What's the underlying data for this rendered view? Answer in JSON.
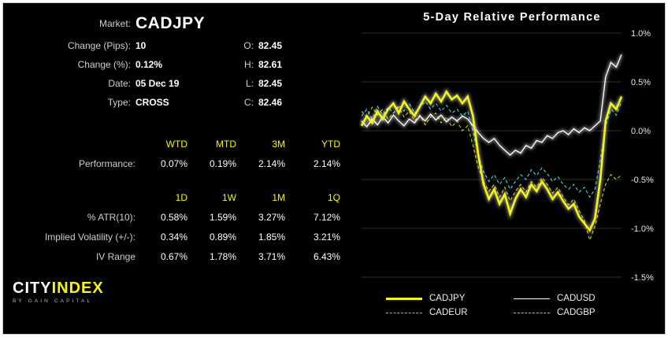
{
  "colors": {
    "accent": "#f8f800",
    "background": "#000000",
    "label_gray": "#cfcfcf",
    "value_white": "#ffffff",
    "grid": "#2e2e2e"
  },
  "info": {
    "market_label": "Market:",
    "market_value": "CADJPY",
    "rows": [
      {
        "label": "Change (Pips):",
        "value": "10",
        "label2": "O:",
        "value2": "82.45"
      },
      {
        "label": "Change (%):",
        "value": "0.12%",
        "label2": "H:",
        "value2": "82.61"
      },
      {
        "label": "Date:",
        "value": "05 Dec 19",
        "label2": "L:",
        "value2": "82.45"
      },
      {
        "label": "Type:",
        "value": "CROSS",
        "label2": "C:",
        "value2": "82.46"
      }
    ]
  },
  "performance": {
    "headers": [
      "WTD",
      "MTD",
      "3M",
      "YTD"
    ],
    "row_label": "Performance:",
    "values": [
      "0.07%",
      "0.19%",
      "2.14%",
      "2.14%"
    ]
  },
  "volatility": {
    "headers": [
      "1D",
      "1W",
      "1M",
      "1Q"
    ],
    "rows": [
      {
        "label": "% ATR(10):",
        "values": [
          "0.58%",
          "1.59%",
          "3.27%",
          "7.12%"
        ]
      },
      {
        "label": "Implied Volatility (+/-):",
        "values": [
          "0.34%",
          "0.89%",
          "1.85%",
          "3.21%"
        ]
      },
      {
        "label": "IV Range",
        "values": [
          "0.67%",
          "1.78%",
          "3.71%",
          "6.43%"
        ]
      }
    ]
  },
  "logo": {
    "part1": "CITY",
    "part2": "INDEX",
    "subtitle": "BY GAIN CAPITAL"
  },
  "chart_data": {
    "type": "line",
    "title": "5-Day Relative Performance",
    "xlabel": "",
    "ylabel": "",
    "ylim": [
      -1.5,
      1.0
    ],
    "grid": true,
    "legend_position": "bottom",
    "yticks": [
      {
        "label": "1.0%",
        "value": 1.0
      },
      {
        "label": "0.5%",
        "value": 0.5
      },
      {
        "label": "0.0%",
        "value": 0.0
      },
      {
        "label": "-0.5%",
        "value": -0.5
      },
      {
        "label": "-1.0%",
        "value": -1.0
      },
      {
        "label": "-1.5%",
        "value": -1.5
      }
    ],
    "series": [
      {
        "name": "CADJPY",
        "color": "#f8f800",
        "width": 2.5,
        "dash": null,
        "glow": true,
        "values": [
          0.05,
          0.15,
          0.08,
          0.2,
          0.12,
          0.22,
          0.28,
          0.18,
          0.3,
          0.22,
          0.15,
          0.25,
          0.35,
          0.28,
          0.38,
          0.3,
          0.4,
          0.32,
          0.36,
          0.28,
          0.35,
          0.15,
          -0.25,
          -0.55,
          -0.7,
          -0.6,
          -0.75,
          -0.65,
          -0.85,
          -0.7,
          -0.6,
          -0.68,
          -0.55,
          -0.62,
          -0.52,
          -0.6,
          -0.7,
          -0.63,
          -0.72,
          -0.8,
          -0.75,
          -0.88,
          -0.95,
          -1.02,
          -0.9,
          -0.5,
          0.1,
          0.28,
          0.22,
          0.35
        ]
      },
      {
        "name": "CADUSD",
        "color": "#ffffff",
        "width": 1.3,
        "dash": null,
        "glow": true,
        "values": [
          0.1,
          0.04,
          0.12,
          0.06,
          0.14,
          0.08,
          0.16,
          0.1,
          0.05,
          0.12,
          0.08,
          0.15,
          0.1,
          0.17,
          0.11,
          0.16,
          0.09,
          0.14,
          0.1,
          0.15,
          0.12,
          0.05,
          -0.02,
          -0.08,
          -0.12,
          -0.08,
          -0.15,
          -0.2,
          -0.25,
          -0.2,
          -0.23,
          -0.15,
          -0.18,
          -0.1,
          -0.12,
          -0.05,
          -0.08,
          -0.02,
          0.0,
          -0.04,
          0.02,
          -0.02,
          0.03,
          0.0,
          0.05,
          0.1,
          0.55,
          0.7,
          0.65,
          0.78
        ]
      },
      {
        "name": "CADEUR",
        "color": "#45d6d6",
        "width": 1.1,
        "dash": "4,3",
        "glow": false,
        "values": [
          0.15,
          0.22,
          0.12,
          0.25,
          0.16,
          0.24,
          0.18,
          0.26,
          0.2,
          0.28,
          0.18,
          0.24,
          0.3,
          0.22,
          0.28,
          0.2,
          0.26,
          0.18,
          0.22,
          0.15,
          0.2,
          0.0,
          -0.25,
          -0.42,
          -0.52,
          -0.45,
          -0.55,
          -0.48,
          -0.6,
          -0.52,
          -0.45,
          -0.5,
          -0.4,
          -0.46,
          -0.38,
          -0.44,
          -0.52,
          -0.47,
          -0.55,
          -0.6,
          -0.55,
          -0.63,
          -0.58,
          -0.68,
          -0.6,
          -0.3,
          0.05,
          0.22,
          0.16,
          0.3
        ]
      },
      {
        "name": "CADGBP",
        "color": "#cfcf00",
        "width": 1.1,
        "dash": "4,3",
        "glow": false,
        "values": [
          0.2,
          0.14,
          0.24,
          0.16,
          0.22,
          0.12,
          0.18,
          0.24,
          0.14,
          0.2,
          0.1,
          0.16,
          0.06,
          0.14,
          0.18,
          0.08,
          0.14,
          0.04,
          0.1,
          0.0,
          0.05,
          -0.15,
          -0.38,
          -0.52,
          -0.62,
          -0.55,
          -0.68,
          -0.58,
          -0.72,
          -0.62,
          -0.55,
          -0.63,
          -0.52,
          -0.58,
          -0.48,
          -0.55,
          -0.64,
          -0.58,
          -0.68,
          -0.76,
          -0.7,
          -0.82,
          -0.92,
          -1.12,
          -0.98,
          -0.75,
          -0.55,
          -0.45,
          -0.5,
          -0.45
        ]
      }
    ]
  }
}
